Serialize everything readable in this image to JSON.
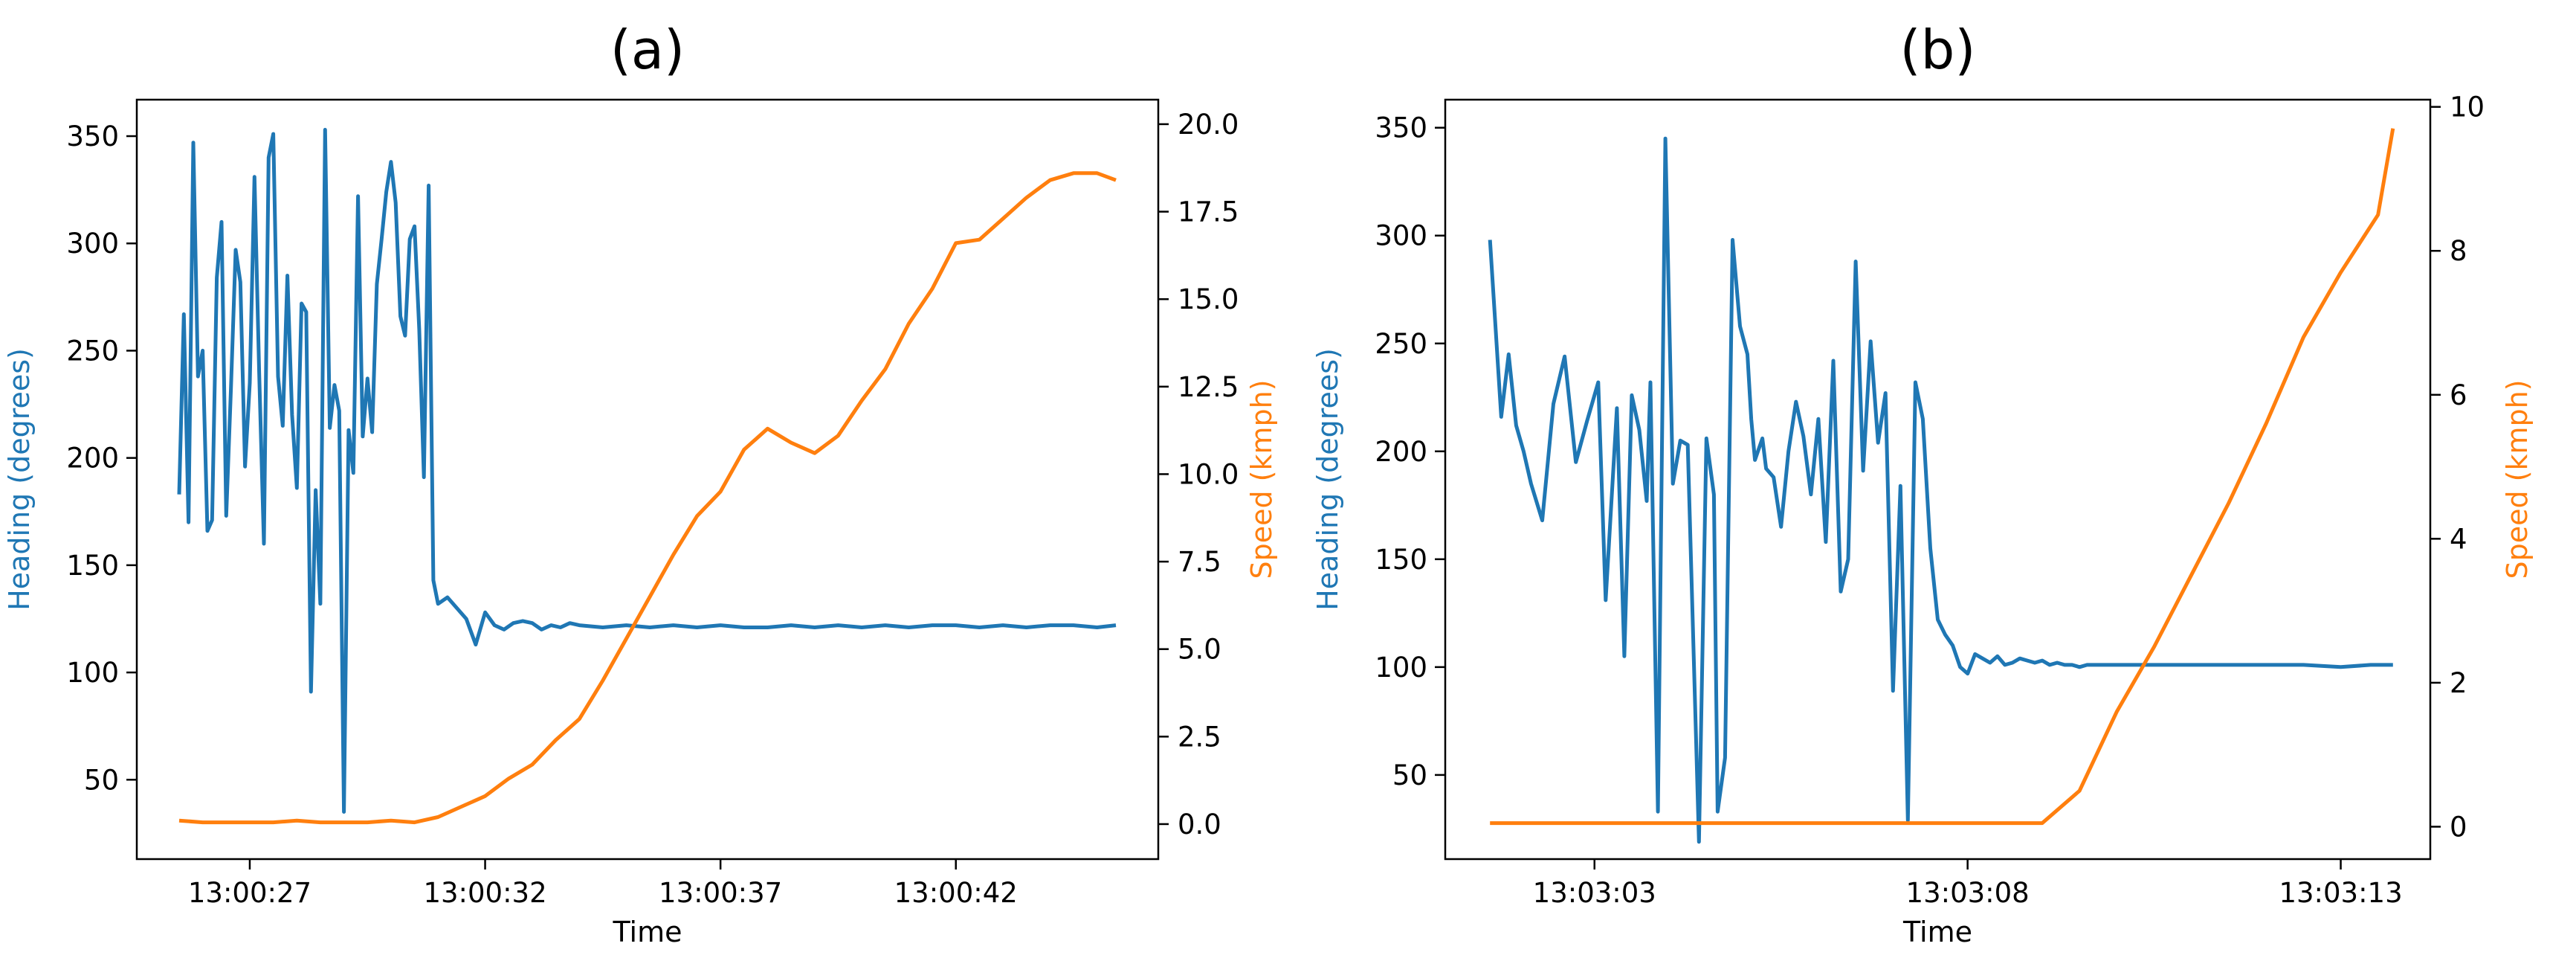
{
  "colors": {
    "heading": "#1f77b4",
    "speed": "#ff7f0e",
    "axis": "#000000"
  },
  "chart_data": [
    {
      "type": "line",
      "title": "(a)",
      "xlabel": "Time",
      "x_ticks": [
        "13:00:27",
        "13:00:32",
        "13:00:37",
        "13:00:42"
      ],
      "x_tick_values": [
        27,
        32,
        37,
        42
      ],
      "xlim": [
        24.6,
        46.3
      ],
      "ylabel_left": "Heading (degrees)",
      "ylabel_right": "Speed (kmph)",
      "ylim_left": [
        13,
        367
      ],
      "ylim_right": [
        -1.0,
        20.7
      ],
      "yticks_left": [
        "50",
        "100",
        "150",
        "200",
        "250",
        "300",
        "350"
      ],
      "ytick_values_left": [
        50,
        100,
        150,
        200,
        250,
        300,
        350
      ],
      "yticks_right": [
        "0.0",
        "2.5",
        "5.0",
        "7.5",
        "10.0",
        "12.5",
        "15.0",
        "17.5",
        "20.0"
      ],
      "ytick_values_right": [
        0,
        2.5,
        5,
        7.5,
        10,
        12.5,
        15,
        17.5,
        20
      ],
      "grid": false,
      "series": [
        {
          "name": "Heading (degrees)",
          "axis": "left",
          "x": [
            25.5,
            25.6,
            25.7,
            25.8,
            25.9,
            26.0,
            26.1,
            26.2,
            26.3,
            26.4,
            26.5,
            26.6,
            26.7,
            26.8,
            26.9,
            27.0,
            27.1,
            27.2,
            27.3,
            27.4,
            27.5,
            27.6,
            27.7,
            27.8,
            27.9,
            28.0,
            28.1,
            28.2,
            28.3,
            28.4,
            28.5,
            28.6,
            28.7,
            28.8,
            28.9,
            29.0,
            29.1,
            29.2,
            29.3,
            29.4,
            29.5,
            29.6,
            29.7,
            29.8,
            29.9,
            30.0,
            30.1,
            30.2,
            30.3,
            30.4,
            30.5,
            30.6,
            30.7,
            30.8,
            30.9,
            31.0,
            31.2,
            31.4,
            31.6,
            31.8,
            32.0,
            32.2,
            32.4,
            32.6,
            32.8,
            33.0,
            33.2,
            33.4,
            33.6,
            33.8,
            34.0,
            34.5,
            35.0,
            35.5,
            36.0,
            36.5,
            37.0,
            37.5,
            38.0,
            38.5,
            39.0,
            39.5,
            40.0,
            40.5,
            41.0,
            41.5,
            42.0,
            42.5,
            43.0,
            43.5,
            44.0,
            44.5,
            45.0,
            45.4
          ],
          "values": [
            183,
            267,
            170,
            347,
            238,
            250,
            166,
            171,
            284,
            310,
            173,
            232,
            297,
            282,
            196,
            235,
            331,
            240,
            160,
            340,
            351,
            238,
            215,
            285,
            220,
            186,
            272,
            268,
            91,
            185,
            132,
            353,
            214,
            234,
            222,
            35,
            213,
            193,
            322,
            210,
            237,
            212,
            281,
            302,
            324,
            338,
            319,
            266,
            257,
            302,
            308,
            260,
            191,
            327,
            143,
            132,
            135,
            130,
            125,
            113,
            128,
            122,
            120,
            123,
            124,
            123,
            120,
            122,
            121,
            123,
            122,
            121,
            122,
            121,
            122,
            121,
            122,
            121,
            121,
            122,
            121,
            122,
            121,
            122,
            121,
            122,
            122,
            121,
            122,
            121,
            122,
            122,
            121,
            122
          ]
        },
        {
          "name": "Speed (kmph)",
          "axis": "right",
          "x": [
            25.5,
            26.0,
            26.5,
            27.0,
            27.5,
            28.0,
            28.5,
            29.0,
            29.5,
            30.0,
            30.5,
            31.0,
            31.5,
            32.0,
            32.5,
            33.0,
            33.5,
            34.0,
            34.5,
            35.0,
            35.5,
            36.0,
            36.5,
            37.0,
            37.5,
            38.0,
            38.5,
            39.0,
            39.5,
            40.0,
            40.5,
            41.0,
            41.5,
            42.0,
            42.5,
            43.0,
            43.5,
            44.0,
            44.5,
            45.0,
            45.4
          ],
          "values": [
            0.1,
            0.05,
            0.05,
            0.05,
            0.05,
            0.1,
            0.05,
            0.05,
            0.05,
            0.1,
            0.05,
            0.2,
            0.5,
            0.8,
            1.3,
            1.7,
            2.4,
            3.0,
            4.1,
            5.3,
            6.5,
            7.7,
            8.8,
            9.5,
            10.7,
            11.3,
            10.9,
            10.6,
            11.1,
            12.1,
            13.0,
            14.3,
            15.3,
            16.6,
            16.7,
            17.3,
            17.9,
            18.4,
            18.6,
            18.6,
            18.4
          ]
        }
      ]
    },
    {
      "type": "line",
      "title": "(b)",
      "xlabel": "Time",
      "x_ticks": [
        "13:03:03",
        "13:03:08",
        "13:03:13"
      ],
      "x_tick_values": [
        3,
        8,
        13
      ],
      "xlim": [
        1.0,
        14.2
      ],
      "ylabel_left": "Heading (degrees)",
      "ylabel_right": "Speed (kmph)",
      "ylim_left": [
        11,
        363
      ],
      "ylim_right": [
        -0.45,
        10.1
      ],
      "yticks_left": [
        "50",
        "100",
        "150",
        "200",
        "250",
        "300",
        "350"
      ],
      "ytick_values_left": [
        50,
        100,
        150,
        200,
        250,
        300,
        350
      ],
      "yticks_right": [
        "0",
        "2",
        "4",
        "6",
        "8",
        "10"
      ],
      "ytick_values_right": [
        0,
        2,
        4,
        6,
        8,
        10
      ],
      "grid": false,
      "series": [
        {
          "name": "Heading (degrees)",
          "axis": "left",
          "x": [
            1.6,
            1.75,
            1.85,
            1.95,
            2.05,
            2.15,
            2.3,
            2.45,
            2.6,
            2.75,
            2.9,
            3.05,
            3.15,
            3.3,
            3.4,
            3.5,
            3.6,
            3.7,
            3.75,
            3.85,
            3.95,
            4.05,
            4.15,
            4.25,
            4.4,
            4.5,
            4.6,
            4.65,
            4.75,
            4.85,
            4.95,
            5.05,
            5.1,
            5.15,
            5.25,
            5.3,
            5.4,
            5.5,
            5.6,
            5.7,
            5.8,
            5.9,
            6.0,
            6.1,
            6.2,
            6.3,
            6.4,
            6.5,
            6.6,
            6.7,
            6.8,
            6.9,
            7.0,
            7.1,
            7.2,
            7.3,
            7.4,
            7.5,
            7.6,
            7.7,
            7.8,
            7.9,
            8.0,
            8.1,
            8.2,
            8.3,
            8.4,
            8.5,
            8.6,
            8.7,
            8.8,
            8.9,
            9.0,
            9.1,
            9.2,
            9.3,
            9.4,
            9.5,
            9.6,
            9.8,
            10.0,
            10.2,
            10.4,
            10.6,
            10.8,
            11.0,
            11.2,
            11.5,
            12.0,
            12.5,
            13.0,
            13.4,
            13.7
          ],
          "values": [
            298,
            216,
            245,
            212,
            200,
            185,
            168,
            222,
            244,
            195,
            214,
            232,
            131,
            220,
            105,
            226,
            210,
            177,
            232,
            33,
            345,
            185,
            205,
            203,
            19,
            206,
            180,
            33,
            58,
            298,
            258,
            245,
            215,
            196,
            206,
            192,
            188,
            165,
            200,
            223,
            207,
            180,
            215,
            158,
            242,
            135,
            150,
            288,
            191,
            251,
            204,
            227,
            89,
            184,
            29,
            232,
            215,
            155,
            122,
            115,
            110,
            100,
            97,
            106,
            104,
            102,
            105,
            101,
            102,
            104,
            103,
            102,
            103,
            101,
            102,
            101,
            101,
            100,
            101,
            101,
            101,
            101,
            101,
            101,
            101,
            101,
            101,
            101,
            101,
            101,
            100,
            101,
            101
          ]
        },
        {
          "name": "Speed (kmph)",
          "axis": "right",
          "x": [
            1.6,
            2.5,
            3.5,
            4.5,
            5.5,
            6.5,
            7.5,
            8.5,
            9.0,
            9.5,
            10.0,
            10.5,
            11.0,
            11.5,
            12.0,
            12.5,
            13.0,
            13.5,
            13.7
          ],
          "values": [
            0.05,
            0.05,
            0.05,
            0.05,
            0.05,
            0.05,
            0.05,
            0.05,
            0.05,
            0.5,
            1.6,
            2.5,
            3.5,
            4.5,
            5.6,
            6.8,
            7.7,
            8.5,
            9.7
          ]
        }
      ]
    }
  ]
}
